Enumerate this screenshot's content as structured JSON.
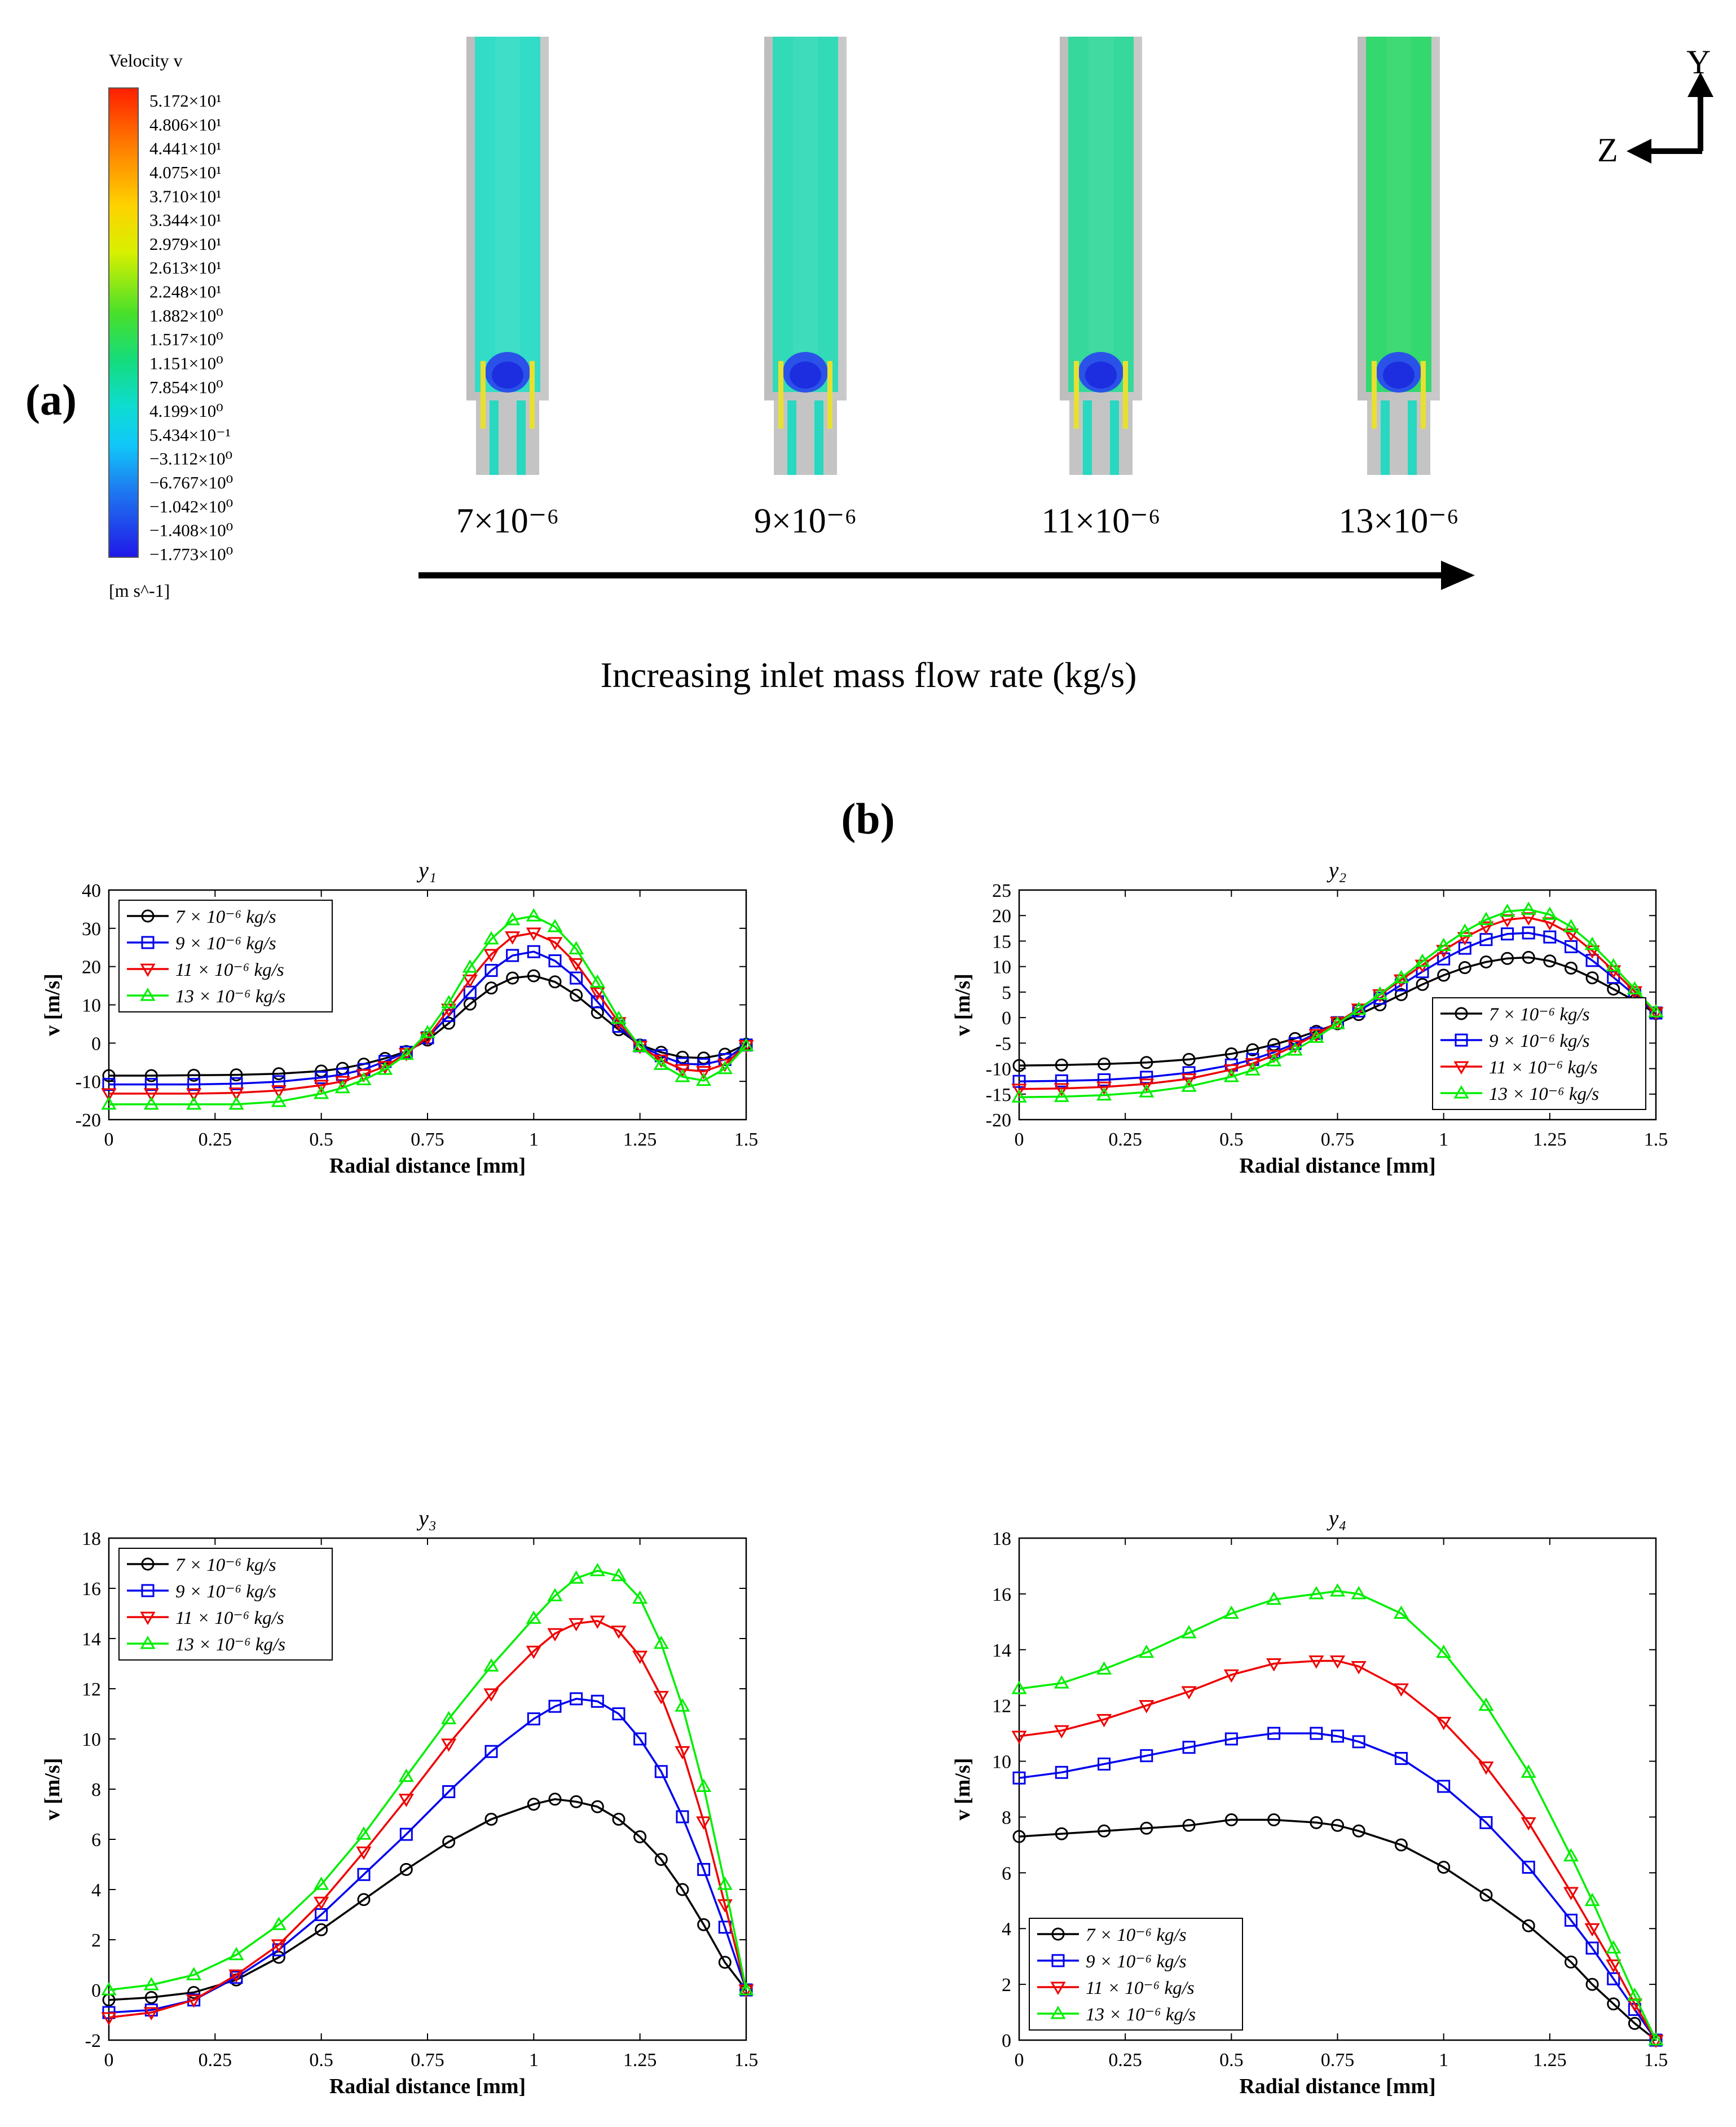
{
  "panel_a": {
    "label": "(a)",
    "legend": {
      "title": "Velocity v",
      "ticks": [
        "5.172×10¹",
        "4.806×10¹",
        "4.441×10¹",
        "4.075×10¹",
        "3.710×10¹",
        "3.344×10¹",
        "2.979×10¹",
        "2.613×10¹",
        "2.248×10¹",
        "1.882×10⁰",
        "1.517×10⁰",
        "1.151×10⁰",
        "7.854×10⁰",
        "4.199×10⁰",
        "5.434×10⁻¹",
        "−3.112×10⁰",
        "−6.767×10⁰",
        "−1.042×10⁰",
        "−1.408×10⁰",
        "−1.773×10⁰"
      ],
      "unit": "[m s^-1]"
    },
    "cases": [
      "7×10⁻⁶",
      "9×10⁻⁶",
      "11×10⁻⁶",
      "13×10⁻⁶"
    ],
    "case_colors": [
      "#33dcc6",
      "#33dab8",
      "#36d89c",
      "#33d86e"
    ],
    "arrow_label": "Increasing inlet mass flow rate (kg/s)",
    "axes": {
      "y": "Y",
      "z": "Z"
    }
  },
  "panel_b": {
    "label": "(b)"
  },
  "chart_data": [
    {
      "type": "line",
      "title": "y₁",
      "xlabel": "Radial distance [mm]",
      "ylabel": "v [m/s]",
      "xlim": [
        0,
        1.5
      ],
      "ylim": [
        -20,
        40
      ],
      "xticks": [
        0,
        0.25,
        0.5,
        0.75,
        1,
        1.25,
        1.5
      ],
      "yticks": [
        -20,
        -10,
        0,
        10,
        20,
        30,
        40
      ],
      "legend_position": "top-left",
      "x": [
        0,
        0.1,
        0.2,
        0.3,
        0.4,
        0.5,
        0.55,
        0.6,
        0.65,
        0.7,
        0.75,
        0.8,
        0.85,
        0.9,
        0.95,
        1.0,
        1.05,
        1.1,
        1.15,
        1.2,
        1.25,
        1.3,
        1.35,
        1.4,
        1.45,
        1.5
      ],
      "series": [
        {
          "name": "7 × 10⁻⁶ kg/s",
          "color": "#000000",
          "marker": "circle",
          "values": [
            -8.5,
            -8.5,
            -8.4,
            -8.3,
            -8.0,
            -7.3,
            -6.6,
            -5.5,
            -4.0,
            -2.2,
            0.8,
            5.2,
            10.2,
            14.4,
            17.0,
            17.6,
            16.0,
            12.5,
            8.0,
            3.5,
            -0.5,
            -2.4,
            -3.7,
            -3.9,
            -2.9,
            -0.3
          ]
        },
        {
          "name": "9 × 10⁻⁶ kg/s",
          "color": "#0000ee",
          "marker": "square",
          "values": [
            -10.8,
            -10.8,
            -10.8,
            -10.6,
            -10.1,
            -9.0,
            -8.2,
            -6.9,
            -4.8,
            -2.4,
            1.4,
            7.2,
            13.3,
            19.0,
            22.9,
            23.9,
            21.5,
            17.0,
            10.8,
            4.4,
            -0.7,
            -3.3,
            -5.4,
            -5.6,
            -4.3,
            -0.5
          ]
        },
        {
          "name": "11 × 10⁻⁶ kg/s",
          "color": "#ee0000",
          "marker": "tri-down",
          "values": [
            -13.2,
            -13.2,
            -13.2,
            -13.0,
            -12.4,
            -11.0,
            -10.0,
            -8.2,
            -6.1,
            -2.7,
            1.5,
            8.9,
            16.5,
            23.2,
            27.8,
            28.8,
            26.3,
            20.8,
            13.2,
            5.4,
            -0.8,
            -4.4,
            -6.9,
            -7.4,
            -5.5,
            -0.6
          ]
        },
        {
          "name": "13 × 10⁻⁶ kg/s",
          "color": "#00ee00",
          "marker": "tri-up",
          "values": [
            -16.0,
            -16.0,
            -16.0,
            -16.0,
            -15.3,
            -13.2,
            -11.7,
            -9.6,
            -6.9,
            -3.0,
            2.7,
            10.5,
            19.8,
            27.2,
            32.2,
            33.2,
            30.4,
            24.6,
            15.9,
            6.4,
            -0.9,
            -5.6,
            -8.8,
            -9.8,
            -6.7,
            -0.7
          ]
        }
      ]
    },
    {
      "type": "line",
      "title": "y₂",
      "xlabel": "Radial distance [mm]",
      "ylabel": "v [m/s]",
      "xlim": [
        0,
        1.5
      ],
      "ylim": [
        -20,
        25
      ],
      "xticks": [
        0,
        0.25,
        0.5,
        0.75,
        1,
        1.25,
        1.5
      ],
      "yticks": [
        -20,
        -15,
        -10,
        -5,
        0,
        5,
        10,
        15,
        20,
        25
      ],
      "legend_position": "bottom-right",
      "x": [
        0,
        0.1,
        0.2,
        0.3,
        0.4,
        0.5,
        0.55,
        0.6,
        0.65,
        0.7,
        0.75,
        0.8,
        0.85,
        0.9,
        0.95,
        1.0,
        1.05,
        1.1,
        1.15,
        1.2,
        1.25,
        1.3,
        1.35,
        1.4,
        1.45,
        1.5
      ],
      "series": [
        {
          "name": "7 × 10⁻⁶ kg/s",
          "color": "#000000",
          "marker": "circle",
          "values": [
            -9.4,
            -9.3,
            -9.1,
            -8.8,
            -8.2,
            -7.1,
            -6.3,
            -5.3,
            -4.1,
            -2.7,
            -1.2,
            0.6,
            2.5,
            4.5,
            6.5,
            8.3,
            9.8,
            10.9,
            11.6,
            11.8,
            11.1,
            9.7,
            7.8,
            5.6,
            3.3,
            0.8
          ]
        },
        {
          "name": "9 × 10⁻⁶ kg/s",
          "color": "#0000ee",
          "marker": "square",
          "values": [
            -12.5,
            -12.4,
            -12.2,
            -11.7,
            -10.8,
            -9.3,
            -8.2,
            -6.8,
            -5.1,
            -3.1,
            -1.0,
            1.3,
            3.8,
            6.4,
            9.0,
            11.5,
            13.6,
            15.3,
            16.4,
            16.6,
            15.8,
            13.9,
            11.2,
            7.9,
            4.4,
            0.9
          ]
        },
        {
          "name": "11 × 10⁻⁶ kg/s",
          "color": "#ee0000",
          "marker": "tri-down",
          "values": [
            -14.0,
            -13.9,
            -13.6,
            -13.0,
            -12.0,
            -10.2,
            -9.0,
            -7.4,
            -5.5,
            -3.3,
            -0.9,
            1.7,
            4.5,
            7.4,
            10.3,
            13.2,
            15.7,
            17.8,
            19.2,
            19.6,
            18.6,
            16.4,
            13.1,
            9.2,
            5.1,
            1.0
          ]
        },
        {
          "name": "13 × 10⁻⁶ kg/s",
          "color": "#00ee00",
          "marker": "tri-up",
          "values": [
            -15.6,
            -15.5,
            -15.2,
            -14.6,
            -13.5,
            -11.6,
            -10.3,
            -8.5,
            -6.4,
            -3.9,
            -1.2,
            1.6,
            4.6,
            7.8,
            11.0,
            14.1,
            16.9,
            19.2,
            20.8,
            21.2,
            20.2,
            17.8,
            14.3,
            10.1,
            5.6,
            1.1
          ]
        }
      ]
    },
    {
      "type": "line",
      "title": "y₃",
      "xlabel": "Radial distance [mm]",
      "ylabel": "v [m/s]",
      "xlim": [
        0,
        1.5
      ],
      "ylim": [
        -2,
        18
      ],
      "xticks": [
        0,
        0.25,
        0.5,
        0.75,
        1,
        1.25,
        1.5
      ],
      "yticks": [
        -2,
        0,
        2,
        4,
        6,
        8,
        10,
        12,
        14,
        16,
        18
      ],
      "legend_position": "top-left",
      "x": [
        0,
        0.1,
        0.2,
        0.3,
        0.4,
        0.5,
        0.6,
        0.7,
        0.8,
        0.9,
        1.0,
        1.05,
        1.1,
        1.15,
        1.2,
        1.25,
        1.3,
        1.35,
        1.4,
        1.45,
        1.5
      ],
      "series": [
        {
          "name": "7 × 10⁻⁶ kg/s",
          "color": "#000000",
          "marker": "circle",
          "values": [
            -0.4,
            -0.3,
            -0.1,
            0.4,
            1.3,
            2.4,
            3.6,
            4.8,
            5.9,
            6.8,
            7.4,
            7.6,
            7.5,
            7.3,
            6.8,
            6.1,
            5.2,
            4.0,
            2.6,
            1.1,
            0.0
          ]
        },
        {
          "name": "9 × 10⁻⁶ kg/s",
          "color": "#0000ee",
          "marker": "square",
          "values": [
            -0.9,
            -0.8,
            -0.4,
            0.5,
            1.6,
            3.0,
            4.6,
            6.2,
            7.9,
            9.5,
            10.8,
            11.3,
            11.6,
            11.5,
            11.0,
            10.0,
            8.7,
            6.9,
            4.8,
            2.5,
            0.0
          ]
        },
        {
          "name": "11 × 10⁻⁶ kg/s",
          "color": "#ee0000",
          "marker": "tri-down",
          "values": [
            -1.1,
            -0.9,
            -0.4,
            0.6,
            1.8,
            3.5,
            5.5,
            7.6,
            9.8,
            11.8,
            13.5,
            14.2,
            14.6,
            14.7,
            14.3,
            13.3,
            11.7,
            9.5,
            6.7,
            3.4,
            0.0
          ]
        },
        {
          "name": "13 × 10⁻⁶ kg/s",
          "color": "#00ee00",
          "marker": "tri-up",
          "values": [
            0.0,
            0.2,
            0.6,
            1.4,
            2.6,
            4.2,
            6.2,
            8.5,
            10.8,
            12.9,
            14.8,
            15.7,
            16.4,
            16.7,
            16.5,
            15.6,
            13.8,
            11.3,
            8.1,
            4.2,
            0.0
          ]
        }
      ]
    },
    {
      "type": "line",
      "title": "y₄",
      "xlabel": "Radial distance [mm]",
      "ylabel": "v [m/s]",
      "xlim": [
        0,
        1.5
      ],
      "ylim": [
        0,
        18
      ],
      "xticks": [
        0,
        0.25,
        0.5,
        0.75,
        1,
        1.25,
        1.5
      ],
      "yticks": [
        0,
        2,
        4,
        6,
        8,
        10,
        12,
        14,
        16,
        18
      ],
      "legend_position": "bottom-left",
      "x": [
        0,
        0.1,
        0.2,
        0.3,
        0.4,
        0.5,
        0.6,
        0.7,
        0.75,
        0.8,
        0.9,
        1.0,
        1.1,
        1.2,
        1.3,
        1.35,
        1.4,
        1.45,
        1.5
      ],
      "series": [
        {
          "name": "7 × 10⁻⁶ kg/s",
          "color": "#000000",
          "marker": "circle",
          "values": [
            7.3,
            7.4,
            7.5,
            7.6,
            7.7,
            7.9,
            7.9,
            7.8,
            7.7,
            7.5,
            7.0,
            6.2,
            5.2,
            4.1,
            2.8,
            2.0,
            1.3,
            0.6,
            0.0
          ]
        },
        {
          "name": "9 × 10⁻⁶ kg/s",
          "color": "#0000ee",
          "marker": "square",
          "values": [
            9.4,
            9.6,
            9.9,
            10.2,
            10.5,
            10.8,
            11.0,
            11.0,
            10.9,
            10.7,
            10.1,
            9.1,
            7.8,
            6.2,
            4.3,
            3.3,
            2.2,
            1.1,
            0.0
          ]
        },
        {
          "name": "11 × 10⁻⁶ kg/s",
          "color": "#ee0000",
          "marker": "tri-down",
          "values": [
            10.9,
            11.1,
            11.5,
            12.0,
            12.5,
            13.1,
            13.5,
            13.6,
            13.6,
            13.4,
            12.6,
            11.4,
            9.8,
            7.8,
            5.3,
            4.0,
            2.7,
            1.3,
            0.0
          ]
        },
        {
          "name": "13 × 10⁻⁶ kg/s",
          "color": "#00ee00",
          "marker": "tri-up",
          "values": [
            12.6,
            12.8,
            13.3,
            13.9,
            14.6,
            15.3,
            15.8,
            16.0,
            16.1,
            16.0,
            15.3,
            13.9,
            12.0,
            9.6,
            6.6,
            5.0,
            3.3,
            1.6,
            0.0
          ]
        }
      ]
    }
  ]
}
